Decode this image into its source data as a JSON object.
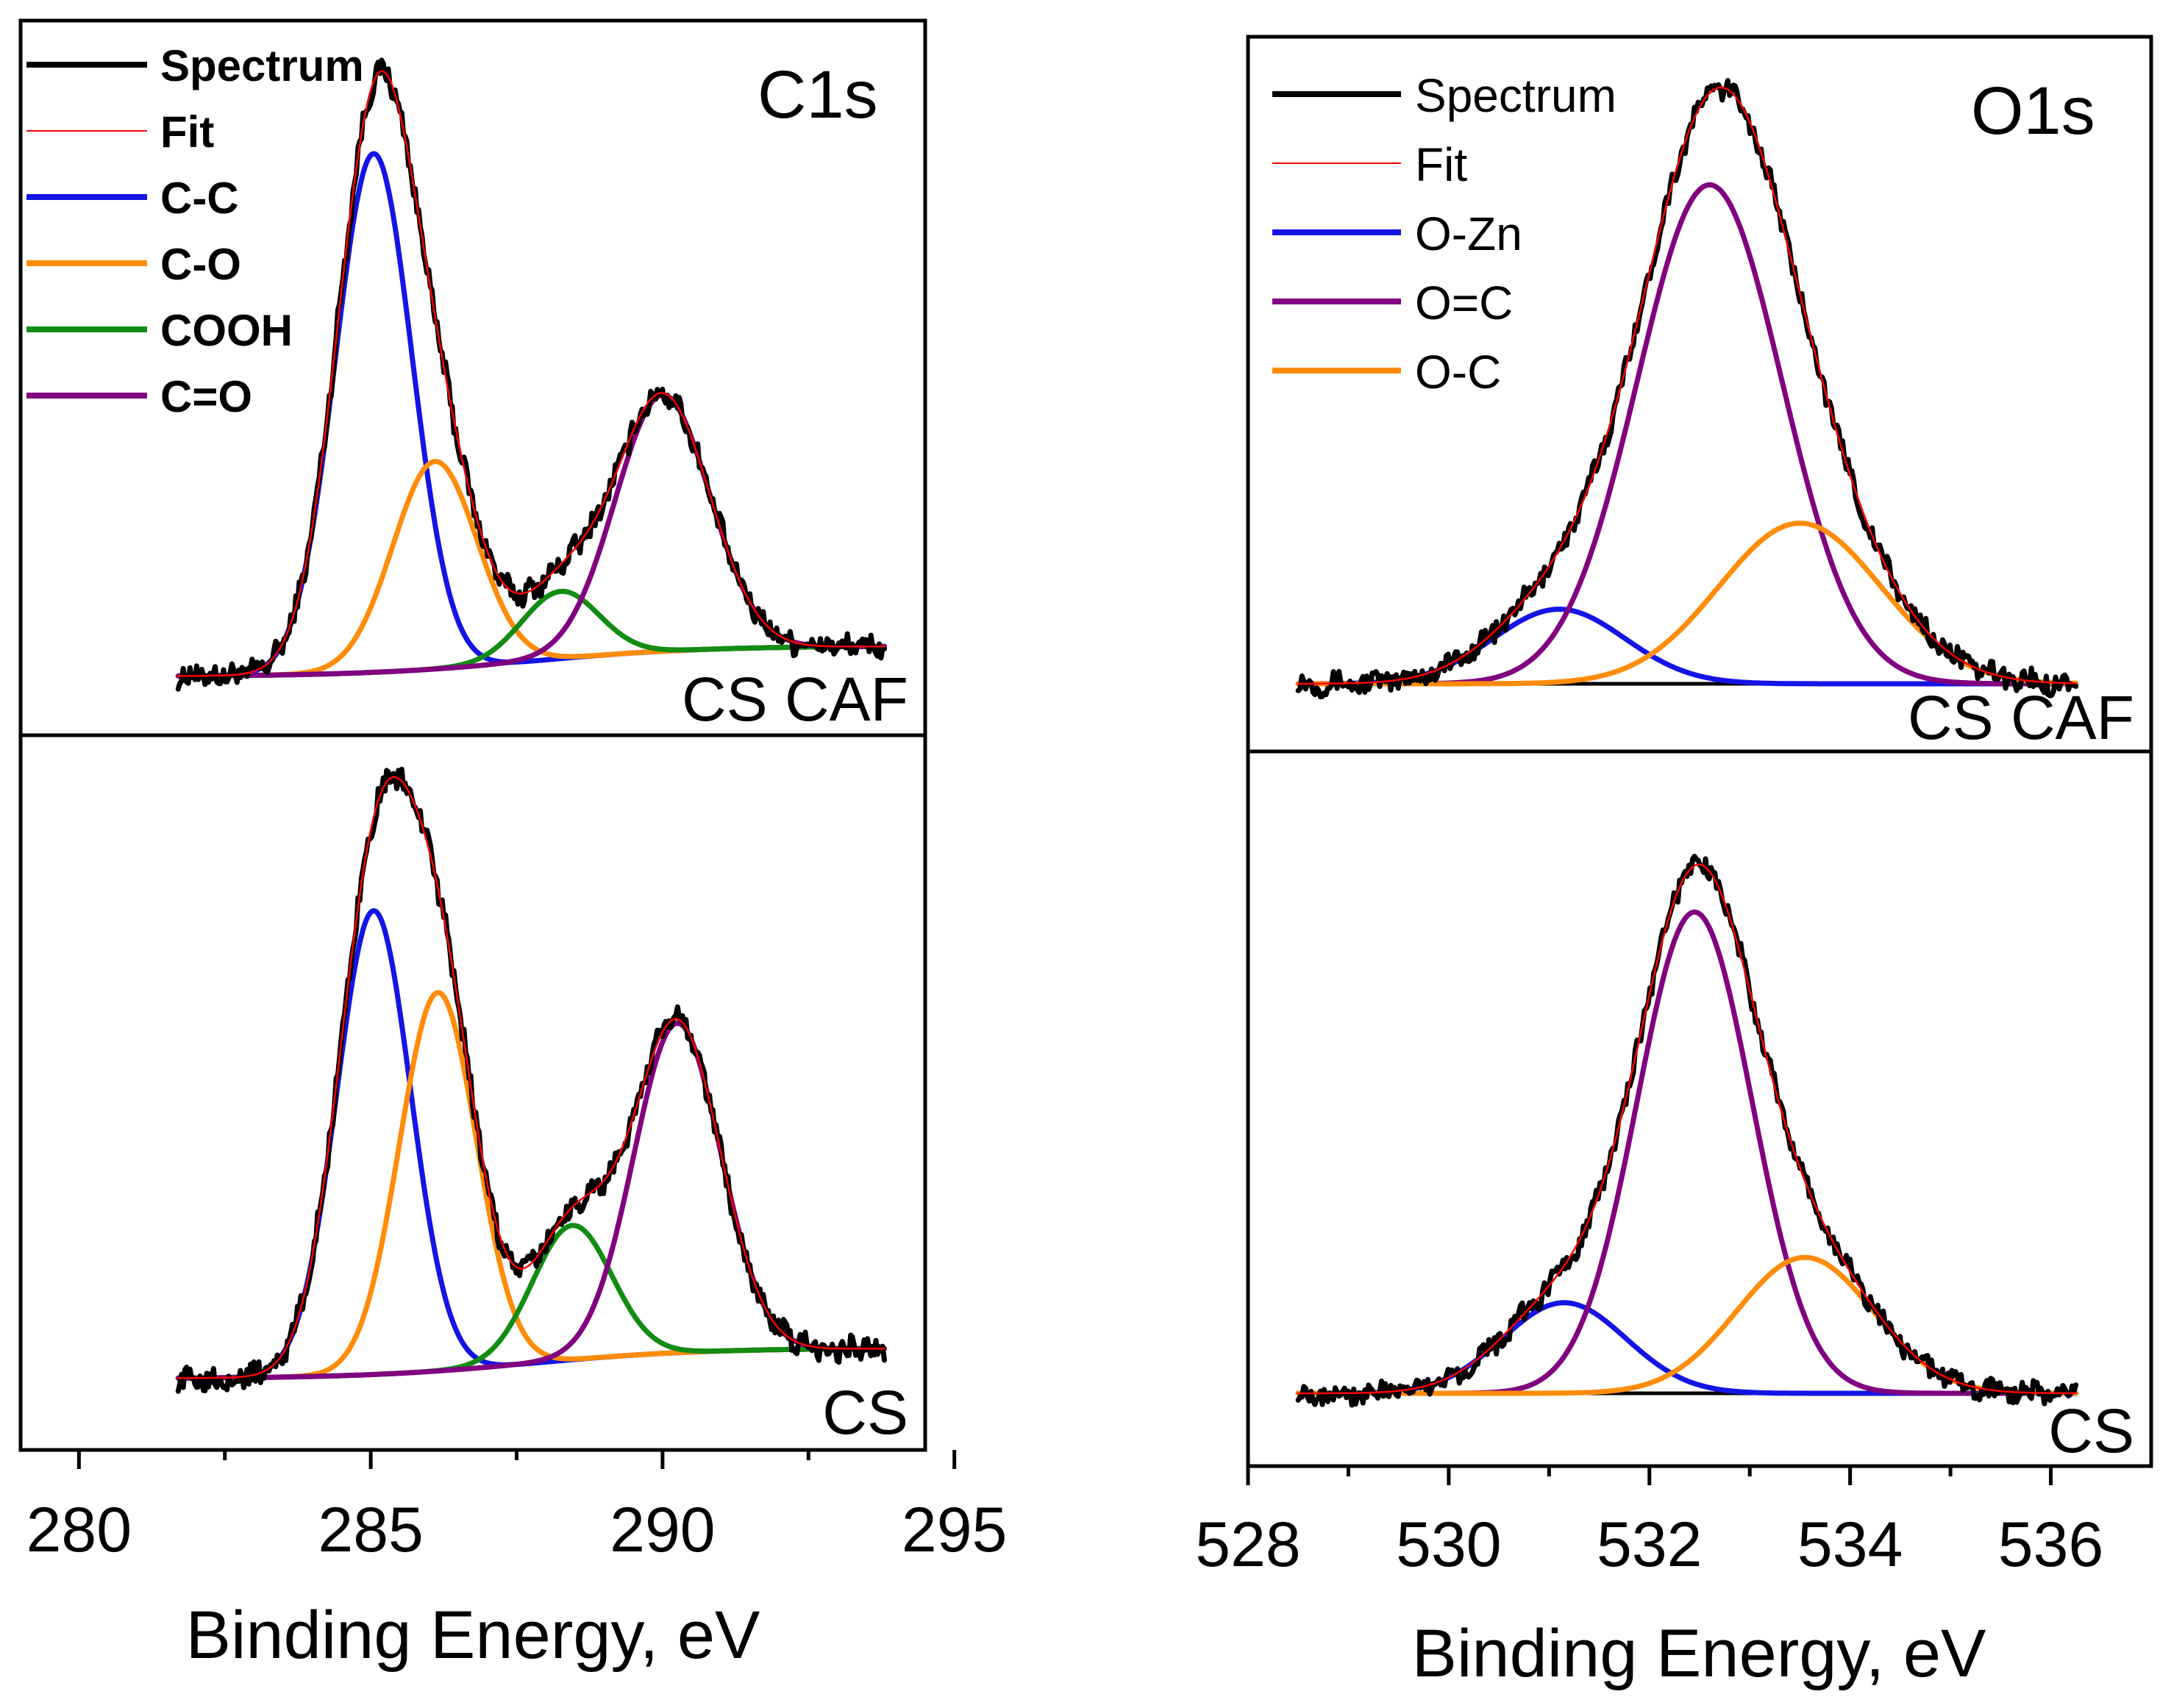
{
  "chart_data": [
    {
      "type": "line",
      "title": "C1s",
      "xlabel": "Binding Energy, eV",
      "ylabel": "",
      "xlim": [
        279,
        294.5
      ],
      "xticks": [
        280,
        285,
        290,
        295
      ],
      "x_range": [
        281.7,
        293.8
      ],
      "legend": {
        "position": "top-left",
        "entries": [
          {
            "label": "Spectrum",
            "color": "#000000"
          },
          {
            "label": "Fit",
            "color": "#ff0000"
          },
          {
            "label": "C-C",
            "color": "#1414e6"
          },
          {
            "label": "C-O",
            "color": "#ff8c0a"
          },
          {
            "label": "COOH",
            "color": "#128c12"
          },
          {
            "label": "C=O",
            "color": "#800080"
          }
        ]
      },
      "subplots": [
        {
          "sample": "CS CAF",
          "baseline": {
            "start": 0.0,
            "end": 0.05
          },
          "components": [
            {
              "name": "C-C",
              "center": 285.05,
              "height": 0.85,
              "fwhm": 1.55
            },
            {
              "name": "C-O",
              "center": 286.1,
              "height": 0.34,
              "fwhm": 1.7
            },
            {
              "name": "COOH",
              "center": 288.25,
              "height": 0.11,
              "fwhm": 1.55
            },
            {
              "name": "C=O",
              "center": 290.0,
              "height": 0.42,
              "fwhm": 1.9
            }
          ]
        },
        {
          "sample": "CS",
          "baseline": {
            "start": 0.0,
            "end": 0.05
          },
          "components": [
            {
              "name": "C-C",
              "center": 285.05,
              "height": 0.76,
              "fwhm": 1.5
            },
            {
              "name": "C-O",
              "center": 286.15,
              "height": 0.62,
              "fwhm": 1.55
            },
            {
              "name": "COOH",
              "center": 288.45,
              "height": 0.22,
              "fwhm": 1.6
            },
            {
              "name": "C=O",
              "center": 290.25,
              "height": 0.54,
              "fwhm": 1.75
            }
          ]
        }
      ]
    },
    {
      "type": "line",
      "title": "O1s",
      "xlabel": "Binding Energy, eV",
      "ylabel": "",
      "xlim": [
        528.0,
        537.0
      ],
      "xticks": [
        528,
        530,
        532,
        534,
        536
      ],
      "x_range": [
        528.5,
        536.25
      ],
      "legend": {
        "position": "top-left",
        "entries": [
          {
            "label": "Spectrum",
            "color": "#000000"
          },
          {
            "label": "Fit",
            "color": "#ff0000"
          },
          {
            "label": "O-Zn",
            "color": "#1414e6"
          },
          {
            "label": "O=C",
            "color": "#800080"
          },
          {
            "label": "O-C",
            "color": "#ff8c0a"
          }
        ]
      },
      "subplots": [
        {
          "sample": "CS CAF",
          "baseline": {
            "start": 0.0,
            "end": 0.0
          },
          "components": [
            {
              "name": "O-Zn",
              "center": 531.1,
              "height": 0.13,
              "fwhm": 1.55
            },
            {
              "name": "O=C",
              "center": 532.6,
              "height": 0.87,
              "fwhm": 1.7
            },
            {
              "name": "O-C",
              "center": 533.5,
              "height": 0.28,
              "fwhm": 1.9
            }
          ]
        },
        {
          "sample": "CS",
          "baseline": {
            "start": 0.0,
            "end": 0.0
          },
          "components": [
            {
              "name": "O-Zn",
              "center": 531.15,
              "height": 0.16,
              "fwhm": 1.45
            },
            {
              "name": "O=C",
              "center": 532.45,
              "height": 0.85,
              "fwhm": 1.35
            },
            {
              "name": "O-C",
              "center": 533.55,
              "height": 0.24,
              "fwhm": 1.6
            }
          ]
        }
      ]
    }
  ]
}
